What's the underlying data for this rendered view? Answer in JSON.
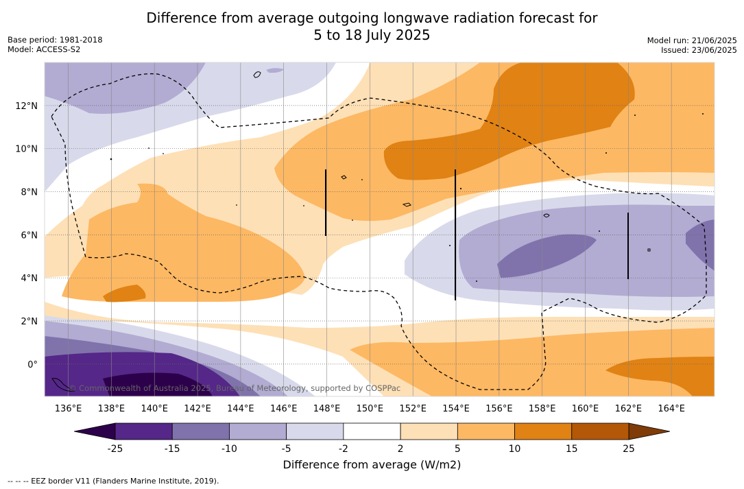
{
  "title": {
    "line1": "Difference from average outgoing longwave radiation forecast for",
    "line2": "5 to 18 July 2025"
  },
  "meta": {
    "base_period": "Base period: 1981-2018",
    "model": "Model: ACCESS-S2",
    "model_run": "Model run: 21/06/2025",
    "issued": "Issued: 23/06/2025"
  },
  "map": {
    "lon_labels": [
      "136°E",
      "138°E",
      "140°E",
      "142°E",
      "144°E",
      "146°E",
      "148°E",
      "150°E",
      "152°E",
      "154°E",
      "156°E",
      "158°E",
      "160°E",
      "162°E",
      "164°E"
    ],
    "lat_labels": [
      "12°N",
      "10°N",
      "8°N",
      "6°N",
      "4°N",
      "2°N",
      "0°"
    ],
    "lon_range": [
      134.9,
      166.0
    ],
    "lat_range": [
      -1.5,
      14.0
    ],
    "watermark": "© Commonwealth of Australia 2025, Bureau of Meteorology, supported by COSPPac"
  },
  "colorbar": {
    "ticks": [
      "-25",
      "-15",
      "-10",
      "-5",
      "-2",
      "2",
      "5",
      "10",
      "15",
      "25"
    ],
    "colors": {
      "below": "#2d004b",
      "neg25_15": "#542788",
      "neg15_10": "#8073ac",
      "neg10_5": "#b2abd2",
      "neg5_2": "#d8daeb",
      "neg2_2": "#ffffff",
      "pos2_5": "#fee0b6",
      "pos5_10": "#fdb863",
      "pos10_15": "#e08214",
      "pos15_25": "#b35806",
      "above": "#7f3b08"
    },
    "title": "Difference from average (W/m2)"
  },
  "footnote": "-- -- -- EEZ border V11 (Flanders Marine Institute, 2019)."
}
